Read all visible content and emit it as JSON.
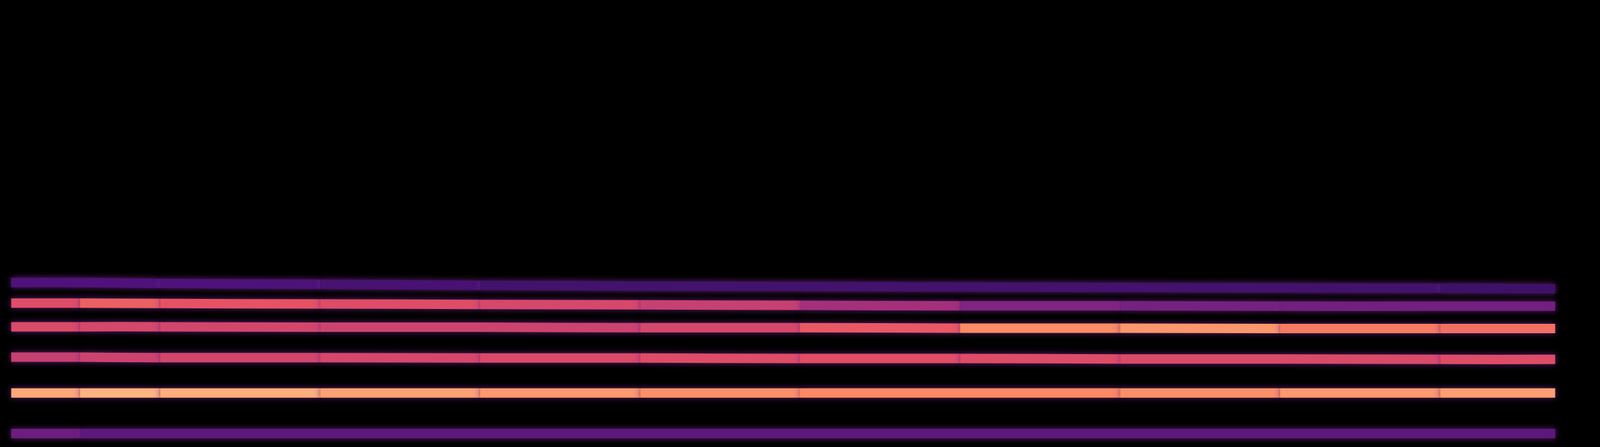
{
  "chart_data": {
    "type": "spectrogram",
    "x": [
      0.7,
      5,
      10,
      20,
      30,
      40,
      50,
      60,
      70,
      80,
      90,
      97.2
    ],
    "xlim": [
      0,
      100
    ],
    "ylim": [
      0,
      100
    ],
    "grid": false,
    "tick_labels": false,
    "series": [
      {
        "values": [
          3,
          3,
          3,
          3,
          3,
          3,
          3,
          3,
          3,
          3,
          3,
          3
        ],
        "intensity": [
          0.35,
          0.3,
          0.28,
          0.3,
          0.28,
          0.3,
          0.28,
          0.3,
          0.28,
          0.3,
          0.28,
          0.3
        ]
      },
      {
        "values": [
          12.1,
          12.1,
          12.1,
          12.1,
          12.1,
          12.1,
          12.1,
          12.1,
          12.1,
          12.1,
          12.1,
          12.1
        ],
        "intensity": [
          0.8,
          0.85,
          0.85,
          0.82,
          0.8,
          0.78,
          0.76,
          0.75,
          0.76,
          0.78,
          0.8,
          0.8
        ]
      },
      {
        "values": [
          20.1,
          20.1,
          20.0,
          20.0,
          19.9,
          19.9,
          19.8,
          19.8,
          19.7,
          19.7,
          19.6,
          19.6
        ],
        "intensity": [
          0.55,
          0.55,
          0.58,
          0.58,
          0.6,
          0.6,
          0.62,
          0.62,
          0.6,
          0.6,
          0.6,
          0.62
        ]
      },
      {
        "values": [
          26.9,
          26.9,
          26.9,
          26.8,
          26.8,
          26.7,
          26.7,
          26.6,
          26.6,
          26.5,
          26.5,
          26.5
        ],
        "intensity": [
          0.6,
          0.6,
          0.58,
          0.58,
          0.55,
          0.58,
          0.6,
          0.7,
          0.82,
          0.75,
          0.7,
          0.7
        ]
      },
      {
        "values": [
          32.2,
          32.2,
          32.1,
          32.0,
          31.9,
          31.8,
          31.7,
          31.6,
          31.6,
          31.5,
          31.5,
          31.5
        ],
        "intensity": [
          0.55,
          0.68,
          0.65,
          0.62,
          0.6,
          0.58,
          0.52,
          0.4,
          0.35,
          0.35,
          0.33,
          0.35
        ]
      },
      {
        "values": [
          36.8,
          36.8,
          36.6,
          36.4,
          36.2,
          36.0,
          35.9,
          35.8,
          35.7,
          35.6,
          35.5,
          35.4
        ],
        "intensity": [
          0.25,
          0.25,
          0.25,
          0.24,
          0.22,
          0.22,
          0.22,
          0.22,
          0.22,
          0.22,
          0.22,
          0.2
        ]
      }
    ]
  }
}
